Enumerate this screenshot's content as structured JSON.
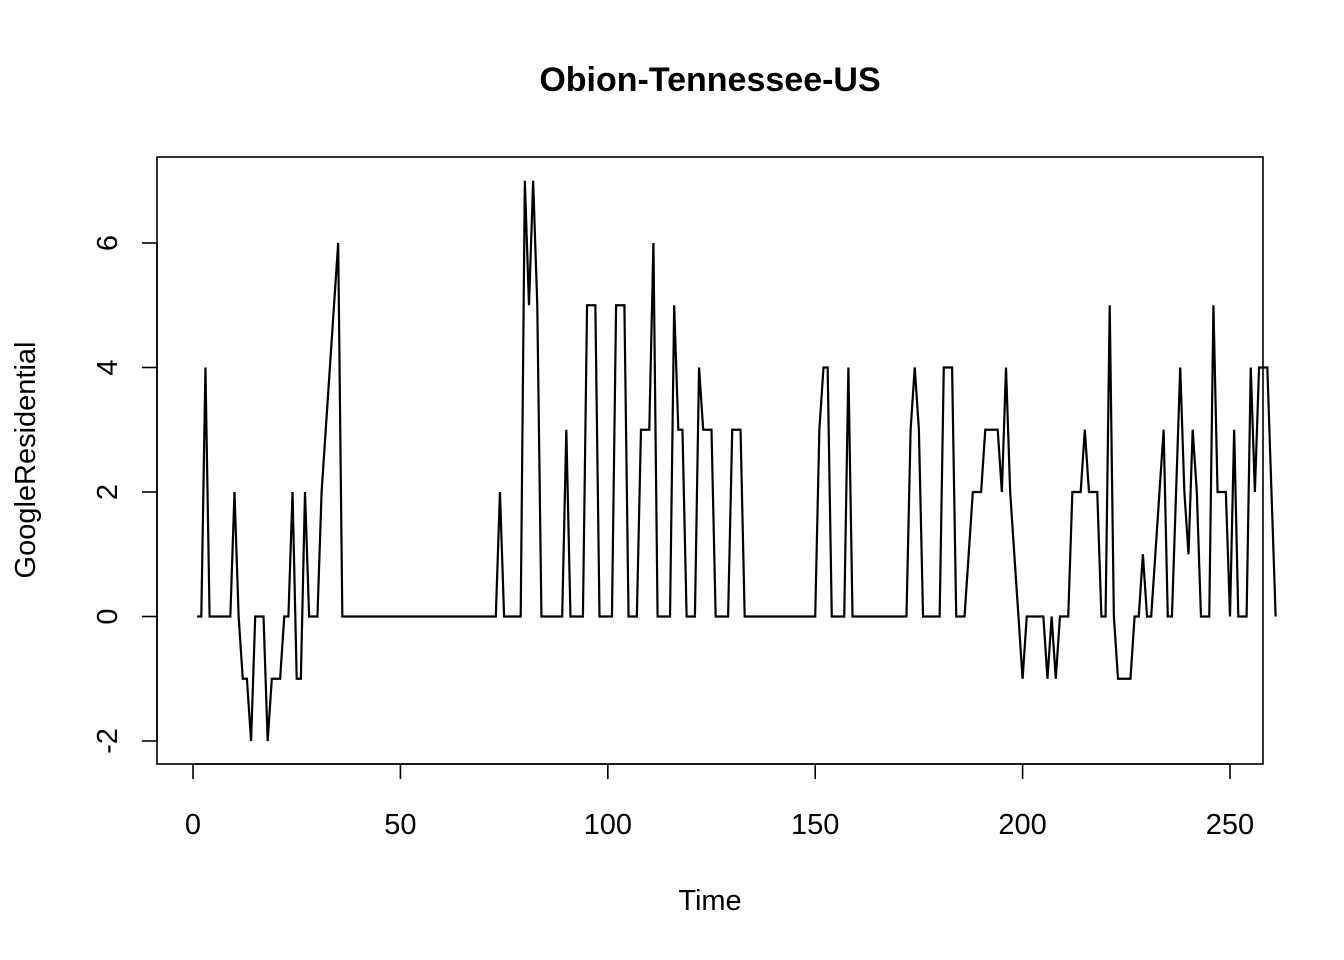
{
  "chart_data": {
    "type": "line",
    "title": "Obion-Tennessee-US",
    "xlabel": "Time",
    "ylabel": "GoogleResidential",
    "xlim": [
      1,
      248
    ],
    "ylim": [
      -2,
      7
    ],
    "x_ticks": [
      0,
      50,
      100,
      150,
      200,
      250
    ],
    "y_ticks": [
      -2,
      0,
      2,
      4,
      6
    ],
    "grid": false,
    "legend": "none",
    "line_color": "#000000",
    "series": [
      {
        "x_start": 1,
        "values": [
          0,
          0,
          4,
          0,
          0,
          0,
          0,
          0,
          0,
          2,
          0,
          -1,
          -1,
          -2,
          0,
          0,
          0,
          -2,
          -1,
          -1,
          -1,
          0,
          0,
          2,
          -1,
          -1,
          2,
          0,
          0,
          0,
          2,
          3,
          4,
          5,
          6,
          0,
          0,
          0,
          0,
          0,
          0,
          0,
          0,
          0,
          0,
          0,
          0,
          0,
          0,
          0,
          0,
          0,
          0,
          0,
          0,
          0,
          0,
          0,
          0,
          0,
          0,
          0,
          0,
          0,
          0,
          0,
          0,
          0,
          0,
          0,
          0,
          0,
          0,
          2,
          0,
          0,
          0,
          0,
          0,
          7,
          5,
          7,
          5,
          0,
          0,
          0,
          0,
          0,
          0,
          3,
          0,
          0,
          0,
          0,
          5,
          5,
          5,
          0,
          0,
          0,
          0,
          5,
          5,
          5,
          0,
          0,
          0,
          3,
          3,
          3,
          6,
          0,
          0,
          0,
          0,
          5,
          3,
          3,
          0,
          0,
          0,
          4,
          3,
          3,
          3,
          0,
          0,
          0,
          0,
          3,
          3,
          3,
          0,
          0,
          0,
          0,
          0,
          0,
          0,
          0,
          0,
          0,
          0,
          0,
          0,
          0,
          0,
          0,
          0,
          0,
          3,
          4,
          4,
          0,
          0,
          0,
          0,
          4,
          0,
          0,
          0,
          0,
          0,
          0,
          0,
          0,
          0,
          0,
          0,
          0,
          0,
          0,
          3,
          4,
          3,
          0,
          0,
          0,
          0,
          0,
          4,
          4,
          4,
          0,
          0,
          0,
          1,
          2,
          2,
          2,
          3,
          3,
          3,
          3,
          2,
          4,
          2,
          1,
          0,
          -1,
          0,
          0,
          0,
          0,
          0,
          -1,
          0,
          -1,
          0,
          0,
          0,
          2,
          2,
          2,
          3,
          2,
          2,
          2,
          0,
          0,
          5,
          0,
          -1,
          -1,
          -1,
          -1,
          0,
          0,
          1,
          0,
          0,
          1,
          2,
          3,
          0,
          0,
          2,
          4,
          2,
          1,
          3,
          2,
          0,
          0,
          0,
          5,
          2,
          2,
          2,
          0,
          3,
          0,
          0,
          0,
          4,
          2,
          4,
          4,
          4,
          2,
          0
        ]
      }
    ]
  }
}
